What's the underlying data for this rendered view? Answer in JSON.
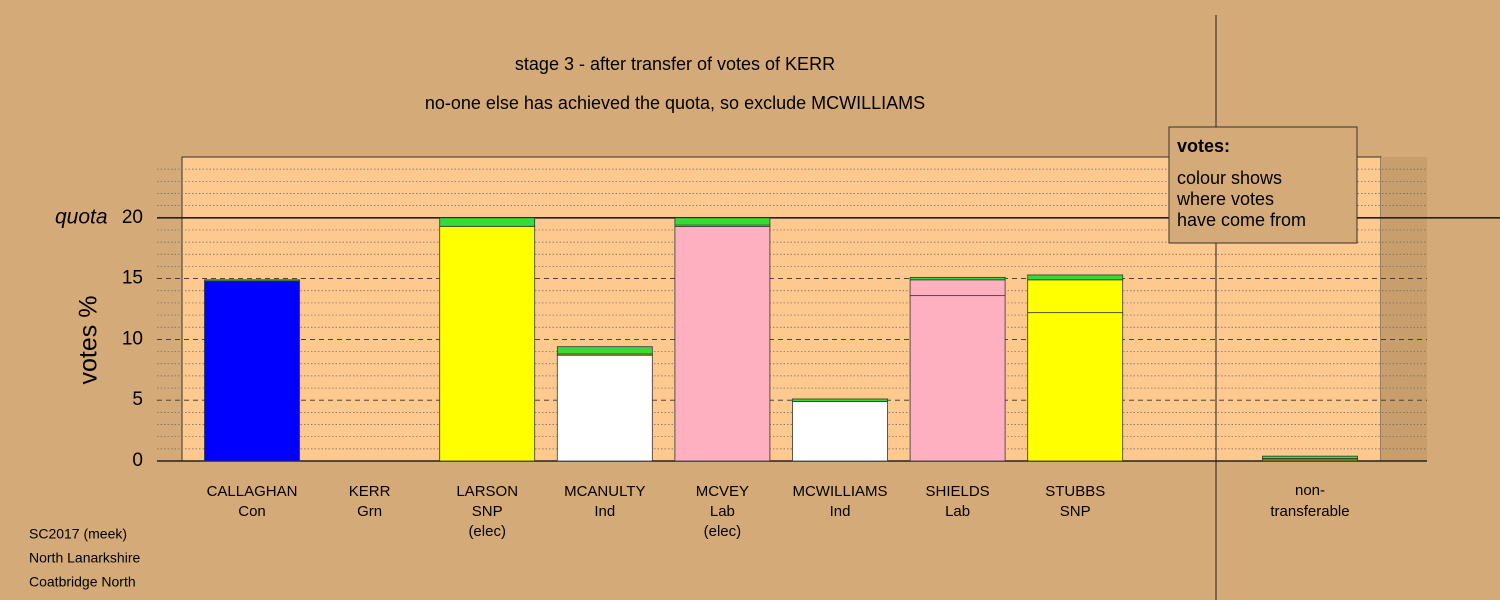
{
  "chart_data": {
    "type": "bar",
    "title": "stage 3 - after transfer of votes of KERR",
    "subtitle": "no-one else has achieved the quota, so exclude MCWILLIAMS",
    "y_label": "votes %",
    "quota_label": "quota",
    "quota": 20,
    "ylim": [
      0,
      25
    ],
    "yticks": [
      0,
      5,
      10,
      15,
      20
    ],
    "minor_yticks": [
      1,
      2,
      3,
      4,
      6,
      7,
      8,
      9,
      11,
      12,
      13,
      14,
      16,
      17,
      18,
      19,
      21,
      22,
      23,
      24
    ],
    "bars": [
      {
        "name": "CALLAGHAN",
        "party": "Con",
        "note": null,
        "segments": [
          {
            "color": "#0000ff",
            "value": 14.8
          },
          {
            "color": "#22dd22",
            "value": 0.1
          }
        ]
      },
      {
        "name": "KERR",
        "party": "Grn",
        "note": null,
        "segments": []
      },
      {
        "name": "LARSON",
        "party": "SNP",
        "note": "(elec)",
        "segments": [
          {
            "color": "#ffff00",
            "value": 19.3
          },
          {
            "color": "#33dd33",
            "value": 0.7
          }
        ]
      },
      {
        "name": "MCANULTY",
        "party": "Ind",
        "note": null,
        "segments": [
          {
            "color": "#ffffff",
            "value": 8.7
          },
          {
            "color": "#ffff00",
            "value": 0.1
          },
          {
            "color": "#33dd33",
            "value": 0.6
          }
        ]
      },
      {
        "name": "MCVEY",
        "party": "Lab",
        "note": "(elec)",
        "segments": [
          {
            "color": "#ffb0c0",
            "value": 19.3
          },
          {
            "color": "#ffff00",
            "value": 0.1
          },
          {
            "color": "#33dd33",
            "value": 0.6
          }
        ]
      },
      {
        "name": "MCWILLIAMS",
        "party": "Ind",
        "note": null,
        "segments": [
          {
            "color": "#ffffff",
            "value": 4.9
          },
          {
            "color": "#33dd33",
            "value": 0.2
          }
        ]
      },
      {
        "name": "SHIELDS",
        "party": "Lab",
        "note": null,
        "segments": [
          {
            "color": "#ffb0c0",
            "value": 13.6
          },
          {
            "color": "#ffb0c0",
            "value": 1.3
          },
          {
            "color": "#33dd33",
            "value": 0.2
          }
        ]
      },
      {
        "name": "STUBBS",
        "party": "SNP",
        "note": null,
        "segments": [
          {
            "color": "#ffff00",
            "value": 12.2
          },
          {
            "color": "#ffff00",
            "value": 2.7
          },
          {
            "color": "#33dd33",
            "value": 0.4
          }
        ]
      }
    ],
    "nontransferable": {
      "label_lines": [
        "non-",
        "transferable"
      ],
      "segments": [
        {
          "color": "#ffff00",
          "value": 0.1
        },
        {
          "color": "#ffb0c0",
          "value": 0.1
        },
        {
          "color": "#33dd33",
          "value": 0.2
        }
      ]
    },
    "legend": {
      "title": "votes:",
      "lines": [
        "colour shows",
        "where votes",
        "have come from"
      ]
    },
    "footer": [
      "SC2017 (meek)",
      "North Lanarkshire",
      "Coatbridge North"
    ]
  }
}
